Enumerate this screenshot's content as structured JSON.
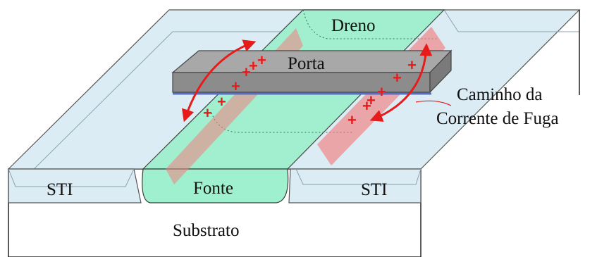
{
  "labels": {
    "drain": "Dreno",
    "gate": "Porta",
    "source": "Fonte",
    "sti_left": "STI",
    "sti_right": "STI",
    "substrate": "Substrato",
    "leakage_line1": "Caminho da",
    "leakage_line2": "Corrente de Fuga"
  },
  "colors": {
    "sti": "#dcecf4",
    "active": "#9ff0cf",
    "gate": "#8c8c8c",
    "gate_top": "#a8a8a8",
    "leakage": "#f08080",
    "charge": "#e81b1b",
    "outline": "#222222"
  },
  "charges": {
    "left_count": 6,
    "right_count": 6,
    "symbol": "+"
  }
}
